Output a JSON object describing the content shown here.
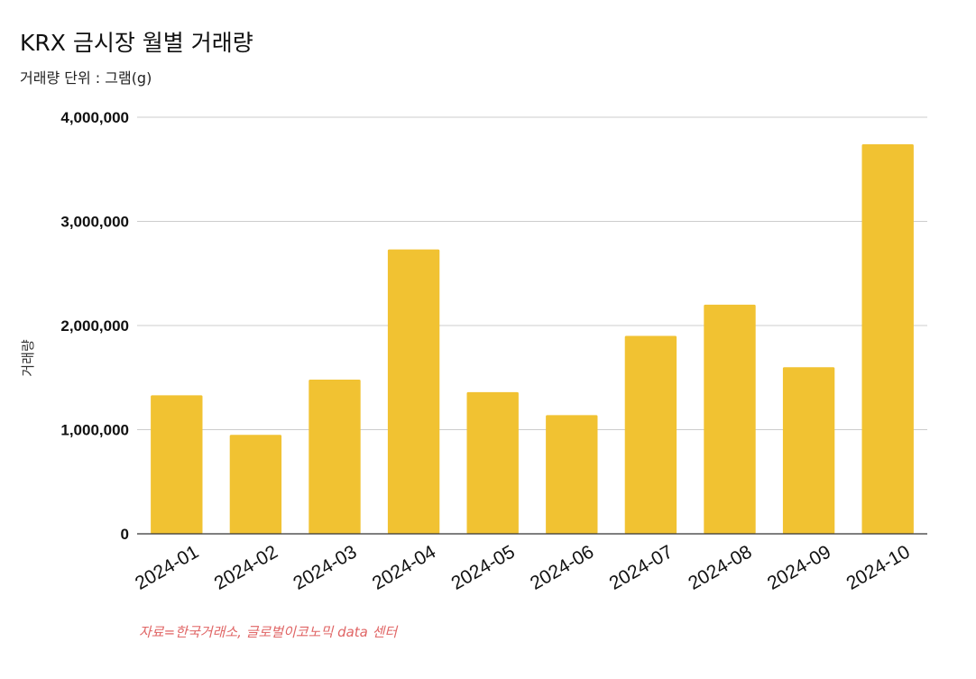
{
  "chart_data": {
    "type": "bar",
    "title": "KRX 금시장 월별 거래량",
    "subtitle": "거래량 단위 : 그램(g)",
    "ylabel": "거래량",
    "xlabel": "",
    "categories": [
      "2024-01",
      "2024-02",
      "2024-03",
      "2024-04",
      "2024-05",
      "2024-06",
      "2024-07",
      "2024-08",
      "2024-09",
      "2024-10"
    ],
    "series": [
      {
        "values": [
          1330000,
          950000,
          1480000,
          2730000,
          1360000,
          1140000,
          1900000,
          2200000,
          1600000,
          3740000
        ]
      }
    ],
    "ylim": [
      0,
      4000000
    ],
    "yticks": [
      0,
      1000000,
      2000000,
      3000000,
      4000000
    ],
    "ytick_labels": [
      "0",
      "1,000,000",
      "2,000,000",
      "3,000,000",
      "4,000,000"
    ],
    "grid": true,
    "legend": "none",
    "source": "자료=한국거래소, 글로벌이코노믹 data 센터"
  },
  "colors": {
    "bar": "#f1c232",
    "grid": "#cccccc",
    "axis": "#333333",
    "source": "#e06666"
  }
}
